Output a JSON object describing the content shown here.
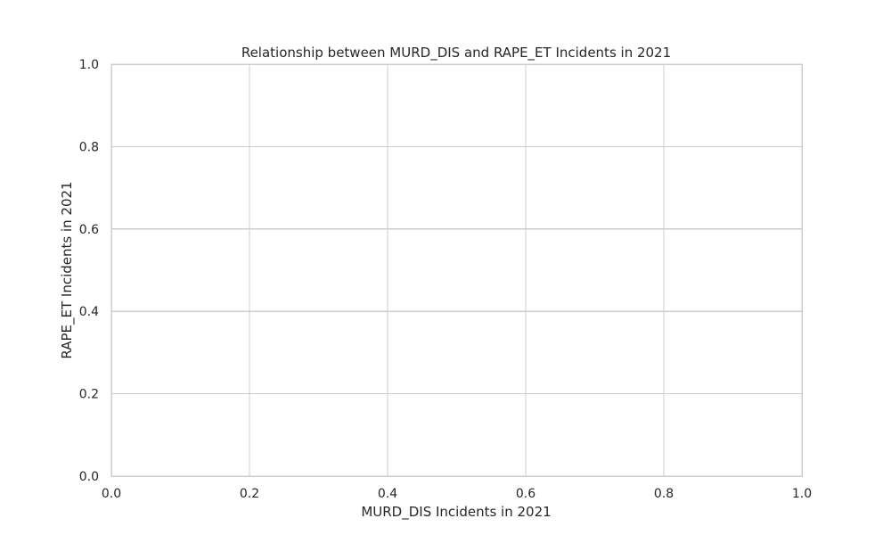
{
  "chart_data": {
    "type": "scatter",
    "title": "Relationship between MURD_DIS and RAPE_ET Incidents in 2021",
    "xlabel": "MURD_DIS Incidents in 2021",
    "ylabel": "RAPE_ET Incidents in 2021",
    "xlim": [
      0,
      1
    ],
    "ylim": [
      0,
      1
    ],
    "xticks": [
      "0.0",
      "0.2",
      "0.4",
      "0.6",
      "0.8",
      "1.0"
    ],
    "yticks": [
      "0.0",
      "0.2",
      "0.4",
      "0.6",
      "0.8",
      "1.0"
    ],
    "series": [
      {
        "x": [],
        "y": []
      }
    ],
    "grid": true,
    "colors": {
      "grid": "#cccccc",
      "frame": "#cccccc",
      "text": "#262626",
      "background": "#ffffff"
    }
  }
}
